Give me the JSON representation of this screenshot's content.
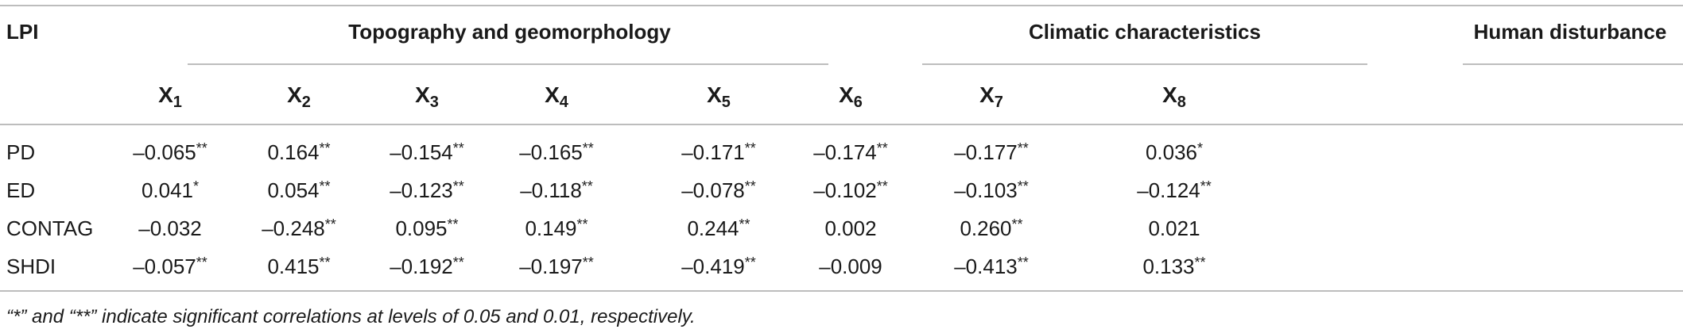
{
  "table": {
    "header": {
      "lpi_label": "LPI",
      "groups": [
        {
          "label": "Topography and geomorphology"
        },
        {
          "label": "Climatic characteristics"
        },
        {
          "label": "Human disturbance"
        }
      ],
      "variables": [
        {
          "base": "X",
          "sub": "1"
        },
        {
          "base": "X",
          "sub": "2"
        },
        {
          "base": "X",
          "sub": "3"
        },
        {
          "base": "X",
          "sub": "4"
        },
        {
          "base": "X",
          "sub": "5"
        },
        {
          "base": "X",
          "sub": "6"
        },
        {
          "base": "X",
          "sub": "7"
        },
        {
          "base": "X",
          "sub": "8"
        }
      ]
    },
    "rows": [
      {
        "label": "PD",
        "cells": [
          {
            "v": "–0.065",
            "s": "**"
          },
          {
            "v": "0.164",
            "s": "**"
          },
          {
            "v": "–0.154",
            "s": "**"
          },
          {
            "v": "–0.165",
            "s": "**"
          },
          {
            "v": "–0.171",
            "s": "**"
          },
          {
            "v": "–0.174",
            "s": "**"
          },
          {
            "v": "–0.177",
            "s": "**"
          },
          {
            "v": "0.036",
            "s": "*"
          }
        ]
      },
      {
        "label": "ED",
        "cells": [
          {
            "v": "0.041",
            "s": "*"
          },
          {
            "v": "0.054",
            "s": "**"
          },
          {
            "v": "–0.123",
            "s": "**"
          },
          {
            "v": "–0.118",
            "s": "**"
          },
          {
            "v": "–0.078",
            "s": "**"
          },
          {
            "v": "–0.102",
            "s": "**"
          },
          {
            "v": "–0.103",
            "s": "**"
          },
          {
            "v": "–0.124",
            "s": "**"
          }
        ]
      },
      {
        "label": "CONTAG",
        "cells": [
          {
            "v": "–0.032",
            "s": ""
          },
          {
            "v": "–0.248",
            "s": "**"
          },
          {
            "v": "0.095",
            "s": "**"
          },
          {
            "v": "0.149",
            "s": "**"
          },
          {
            "v": "0.244",
            "s": "**"
          },
          {
            "v": "0.002",
            "s": ""
          },
          {
            "v": "0.260",
            "s": "**"
          },
          {
            "v": "0.021",
            "s": ""
          }
        ]
      },
      {
        "label": "SHDI",
        "cells": [
          {
            "v": "–0.057",
            "s": "**"
          },
          {
            "v": "0.415",
            "s": "**"
          },
          {
            "v": "–0.192",
            "s": "**"
          },
          {
            "v": "–0.197",
            "s": "**"
          },
          {
            "v": "–0.419",
            "s": "**"
          },
          {
            "v": "–0.009",
            "s": ""
          },
          {
            "v": "–0.413",
            "s": "**"
          },
          {
            "v": "0.133",
            "s": "**"
          }
        ]
      }
    ],
    "footnote": "“*” and “**” indicate significant correlations at levels of 0.05 and 0.01, respectively."
  }
}
